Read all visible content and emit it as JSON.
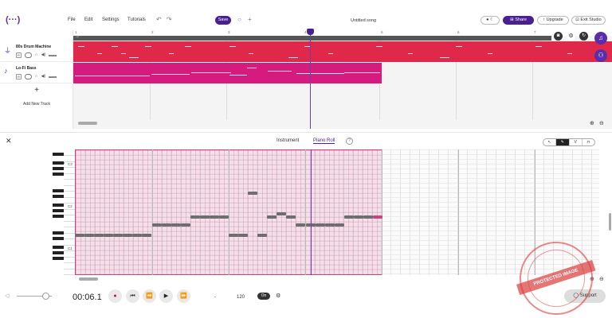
{
  "app": {
    "logo": "(···)",
    "menu": [
      "File",
      "Edit",
      "Settings",
      "Tutorials"
    ],
    "save_label": "Save",
    "song_title": "Untitled song",
    "share_label": "Share",
    "upgrade_label": "Upgrade",
    "exit_label": "Exit Studio"
  },
  "tracks": [
    {
      "name": "80s Drum Machine",
      "icon": "drum-icon"
    },
    {
      "name": "Lo-Fi Bass",
      "icon": "guitar-icon"
    }
  ],
  "add_track_label": "Add New Track",
  "ruler": [
    "1",
    "2",
    "3",
    "4",
    "5",
    "6",
    "7"
  ],
  "panel": {
    "tabs": [
      "Instrument",
      "Piano Roll"
    ],
    "active_tab": "Piano Roll",
    "tools": [
      "pointer",
      "pencil",
      "V",
      "lock"
    ],
    "key_labels": [
      "C3",
      "C2",
      "C1"
    ]
  },
  "transport": {
    "time": "00:06.1",
    "bpm_prefix": "-",
    "bpm": "120",
    "metronome_label": "On",
    "support_label": "Support"
  },
  "watermark": "PROTECTED IMAGE",
  "colors": {
    "accent": "#4a1f8f",
    "drum_clip": "#e0294a",
    "bass_clip": "#d61b7f",
    "clip_fill": "#f2c9dc"
  }
}
